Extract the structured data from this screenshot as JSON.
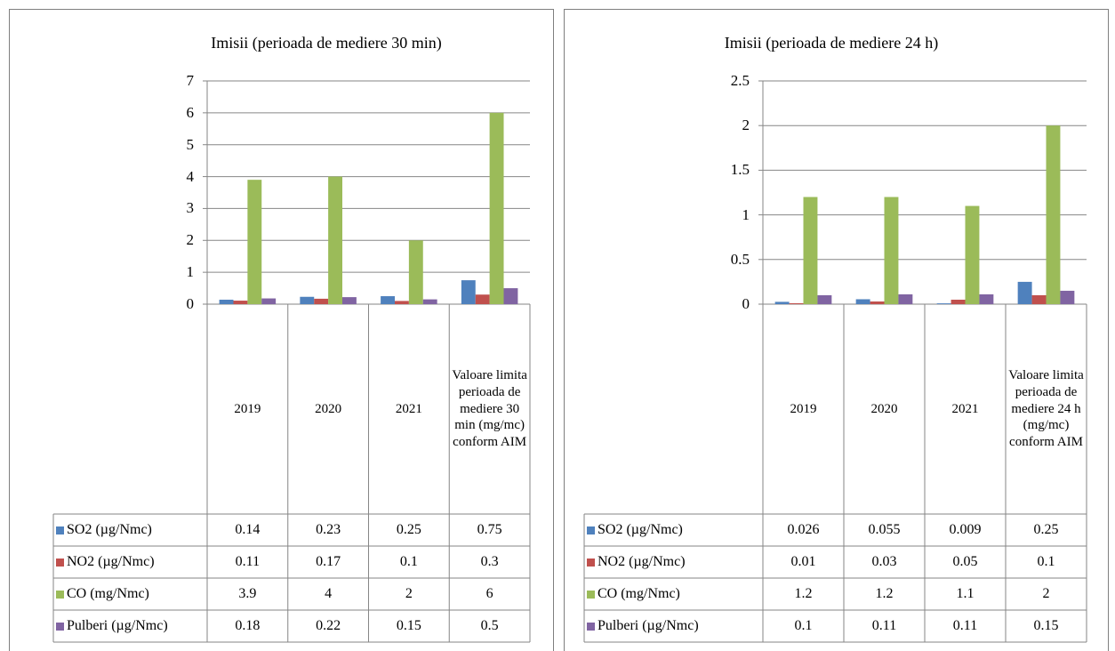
{
  "chart_data": [
    {
      "type": "bar",
      "title": "Imisii (perioada de mediere 30 min)",
      "categories": [
        "2019",
        "2020",
        "2021",
        "Valoare limita perioada de mediere 30 min (mg/mc) conform AIM"
      ],
      "series": [
        {
          "name": "SO2 (µg/Nmc)",
          "color": "#4f81bd",
          "values": [
            0.14,
            0.23,
            0.25,
            0.75
          ]
        },
        {
          "name": "NO2 (µg/Nmc)",
          "color": "#c0504d",
          "values": [
            0.11,
            0.17,
            0.1,
            0.3
          ]
        },
        {
          "name": "CO (mg/Nmc)",
          "color": "#9bbb59",
          "values": [
            3.9,
            4,
            2,
            6
          ]
        },
        {
          "name": "Pulberi (µg/Nmc)",
          "color": "#8064a2",
          "values": [
            0.18,
            0.22,
            0.15,
            0.5
          ]
        }
      ],
      "ylim": [
        0,
        7
      ],
      "yticks": [
        0,
        1,
        2,
        3,
        4,
        5,
        6,
        7
      ],
      "grid": true
    },
    {
      "type": "bar",
      "title": "Imisii (perioada de mediere 24 h)",
      "categories": [
        "2019",
        "2020",
        "2021",
        "Valoare limita perioada de mediere 24 h (mg/mc) conform AIM"
      ],
      "series": [
        {
          "name": "SO2 (µg/Nmc)",
          "color": "#4f81bd",
          "values": [
            0.026,
            0.055,
            0.009,
            0.25
          ]
        },
        {
          "name": "NO2 (µg/Nmc)",
          "color": "#c0504d",
          "values": [
            0.01,
            0.03,
            0.05,
            0.1
          ]
        },
        {
          "name": "CO (mg/Nmc)",
          "color": "#9bbb59",
          "values": [
            1.2,
            1.2,
            1.1,
            2
          ]
        },
        {
          "name": "Pulberi (µg/Nmc)",
          "color": "#8064a2",
          "values": [
            0.1,
            0.11,
            0.11,
            0.15
          ]
        }
      ],
      "ylim": [
        0,
        2.5
      ],
      "yticks": [
        0,
        0.5,
        1,
        1.5,
        2,
        2.5
      ],
      "grid": true
    }
  ]
}
